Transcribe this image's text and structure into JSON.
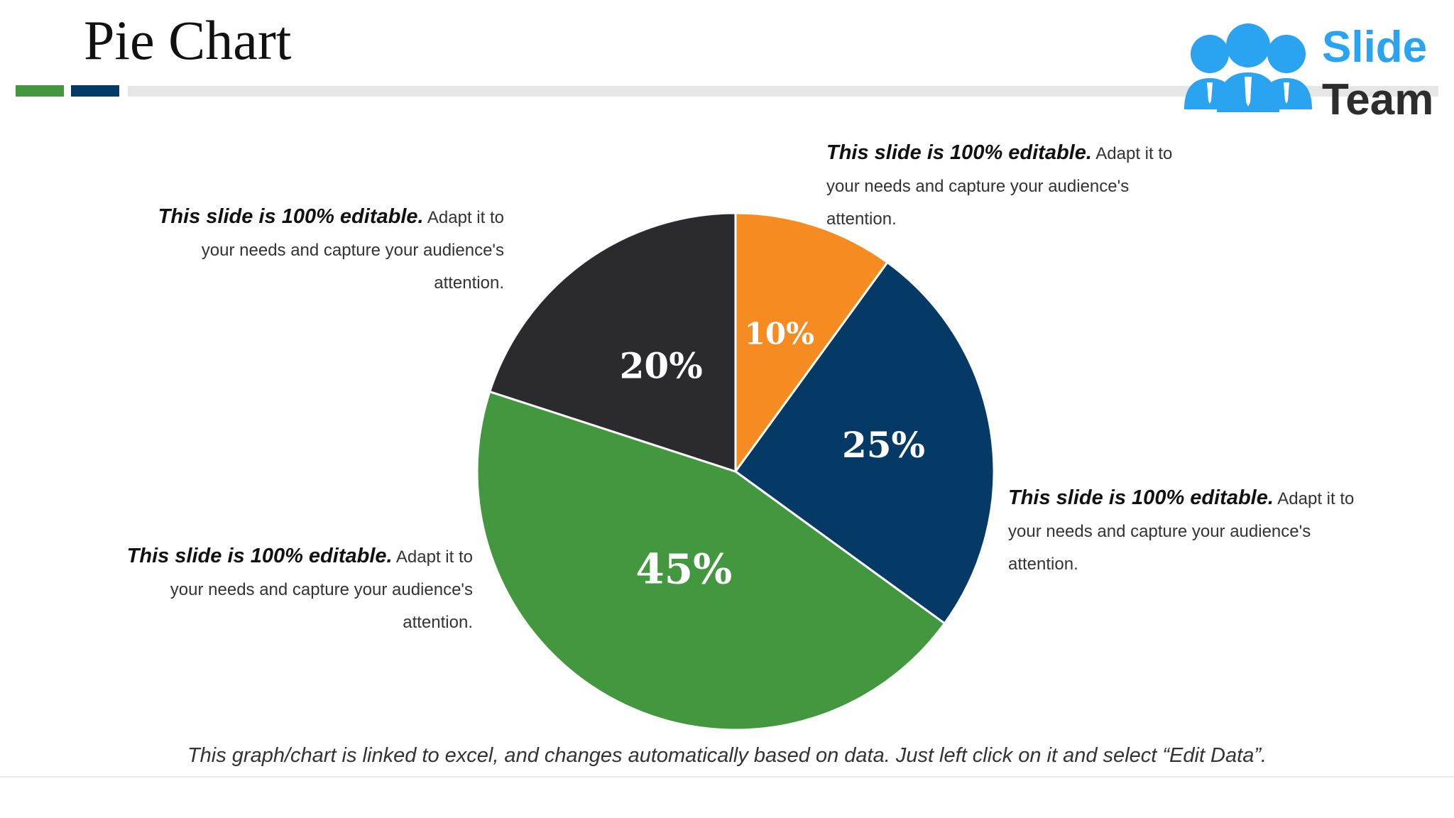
{
  "slide": {
    "title": "Pie Chart",
    "footnote": "This graph/chart is linked to excel, and changes automatically based on data. Just left click on it and select “Edit Data”.",
    "accent_colors": {
      "green": "#43983f",
      "navy": "#063a66",
      "gray": "#e6e6e6"
    }
  },
  "logo": {
    "word1": "Slide",
    "word2": "Team",
    "icon": "people-icon",
    "colors": {
      "primary": "#2aa3f0",
      "text": "#2d2d2d"
    }
  },
  "callouts": [
    {
      "lead": "This slide is 100% editable.",
      "body": " Adapt it to your needs and capture your audience's attention."
    },
    {
      "lead": "This slide is 100% editable.",
      "body": " Adapt it to your needs and capture your audience's attention."
    },
    {
      "lead": "This slide is 100% editable.",
      "body": " Adapt it to your needs and capture your audience's attention."
    },
    {
      "lead": "This slide is 100% editable.",
      "body": " Adapt it to your needs and capture your audience's attention."
    }
  ],
  "chart_data": {
    "type": "pie",
    "title": "",
    "start_angle_deg": 0,
    "direction": "clockwise",
    "slices": [
      {
        "label": "10%",
        "value": 10,
        "color": "#f68b21"
      },
      {
        "label": "25%",
        "value": 25,
        "color": "#063a66"
      },
      {
        "label": "45%",
        "value": 45,
        "color": "#43983f"
      },
      {
        "label": "20%",
        "value": 20,
        "color": "#2b2a2c"
      }
    ]
  }
}
